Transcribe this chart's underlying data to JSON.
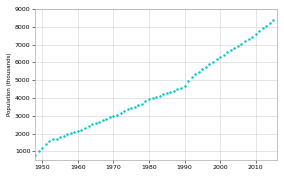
{
  "title": "",
  "xlabel": "",
  "ylabel": "Population (thousands)",
  "xlim": [
    1948,
    2016
  ],
  "ylim": [
    500,
    9000
  ],
  "xticks": [
    1950,
    1960,
    1970,
    1980,
    1990,
    2000,
    2010
  ],
  "yticks": [
    1000,
    2000,
    3000,
    4000,
    5000,
    6000,
    7000,
    8000,
    9000
  ],
  "dot_color": "#00C8C8",
  "background_color": "#ffffff",
  "grid_color": "#cccccc",
  "years": [
    1948,
    1949,
    1950,
    1951,
    1952,
    1953,
    1954,
    1955,
    1956,
    1957,
    1958,
    1959,
    1960,
    1961,
    1962,
    1963,
    1964,
    1965,
    1966,
    1967,
    1968,
    1969,
    1970,
    1971,
    1972,
    1973,
    1974,
    1975,
    1976,
    1977,
    1978,
    1979,
    1980,
    1981,
    1982,
    1983,
    1984,
    1985,
    1986,
    1987,
    1988,
    1989,
    1990,
    1991,
    1992,
    1993,
    1994,
    1995,
    1996,
    1997,
    1998,
    1999,
    2000,
    2001,
    2002,
    2003,
    2004,
    2005,
    2006,
    2007,
    2008,
    2009,
    2010,
    2011,
    2012,
    2013,
    2014,
    2015
  ],
  "population": [
    806,
    1014,
    1203,
    1404,
    1578,
    1669,
    1718,
    1789,
    1873,
    1976,
    2032,
    2088,
    2150,
    2179,
    2331,
    2430,
    2525,
    2598,
    2657,
    2776,
    2841,
    2919,
    2974,
    3065,
    3164,
    3283,
    3369,
    3437,
    3493,
    3575,
    3660,
    3836,
    3922,
    3977,
    4063,
    4119,
    4200,
    4267,
    4332,
    4405,
    4477,
    4560,
    4660,
    4946,
    5195,
    5327,
    5471,
    5619,
    5759,
    5900,
    6041,
    6174,
    6289,
    6439,
    6570,
    6690,
    6810,
    6930,
    7054,
    7180,
    7314,
    7442,
    7587,
    7766,
    7907,
    8059,
    8215,
    8380
  ]
}
